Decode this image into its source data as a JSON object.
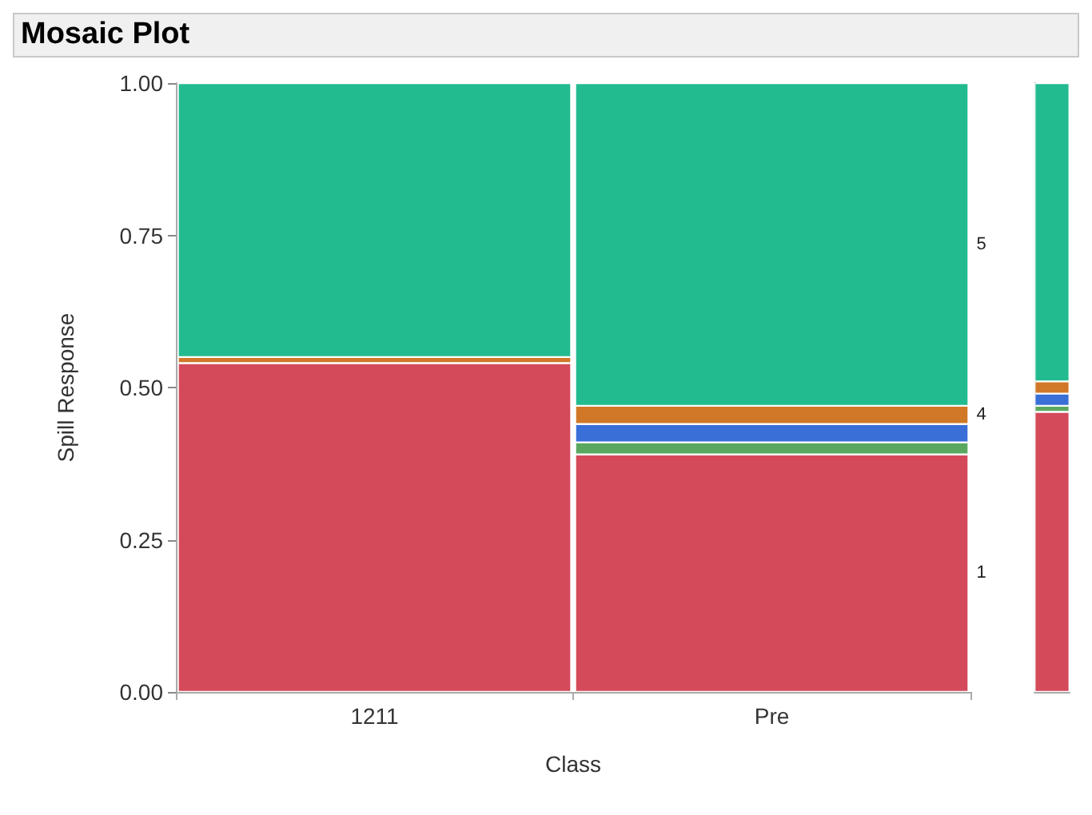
{
  "chart_data": [
    {
      "type": "bar",
      "title": "Mosaic Plot",
      "xlabel": "Class",
      "ylabel": "Spill Response",
      "categories": [
        "1211",
        "Pre"
      ],
      "stacked": true,
      "ylim": [
        0,
        1
      ],
      "yticks": [
        {
          "value": 0,
          "label": "0.00"
        },
        {
          "value": 0.25,
          "label": "0.25"
        },
        {
          "value": 0.5,
          "label": "0.50"
        },
        {
          "value": 0.75,
          "label": "0.75"
        },
        {
          "value": 1,
          "label": "1.00"
        }
      ],
      "grid": false,
      "series": [
        {
          "name": "1",
          "color": "#d44a5a",
          "values": [
            0.54,
            0.39
          ]
        },
        {
          "color": "#5aa860",
          "values": [
            0,
            0.02
          ]
        },
        {
          "color": "#3a6fd8",
          "values": [
            0,
            0.03
          ]
        },
        {
          "name": "4",
          "color": "#d07828",
          "values": [
            0.01,
            0.03
          ]
        },
        {
          "name": "5",
          "color": "#22bb8f",
          "values": [
            0.45,
            0.53
          ]
        }
      ]
    },
    {
      "type": "bar",
      "categories": [
        null
      ],
      "stacked": true,
      "ylim": [
        0,
        1
      ],
      "grid": false,
      "series": [
        {
          "color": "#d44a5a",
          "values": [
            0.46
          ]
        },
        {
          "color": "#5aa860",
          "values": [
            0.01
          ]
        },
        {
          "color": "#3a6fd8",
          "values": [
            0.02
          ]
        },
        {
          "color": "#d07828",
          "values": [
            0.02
          ]
        },
        {
          "color": "#22bb8f",
          "values": [
            0.49
          ]
        }
      ]
    }
  ]
}
